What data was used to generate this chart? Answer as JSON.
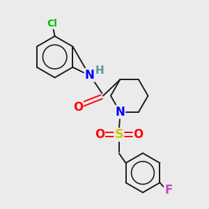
{
  "background_color": "#ebebeb",
  "bond_color": "#1a1a1a",
  "atom_colors": {
    "N": "#0000ff",
    "H": "#5a9999",
    "O": "#ff0000",
    "S": "#cccc00",
    "Cl": "#00bb00",
    "F": "#cc44cc",
    "C": "#1a1a1a"
  },
  "lw": 1.4,
  "figsize": [
    3.0,
    3.0
  ],
  "dpi": 100
}
